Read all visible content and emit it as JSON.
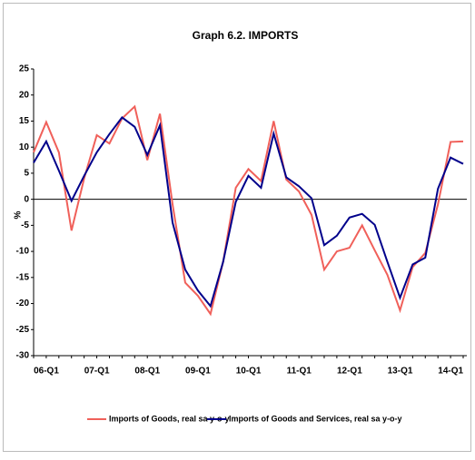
{
  "chart_data": {
    "type": "line",
    "title": "Graph 6.2. IMPORTS",
    "y_label": "%",
    "categories": [
      "06-Q1",
      null,
      null,
      null,
      "07-Q1",
      null,
      null,
      null,
      "08-Q1",
      null,
      null,
      null,
      "09-Q1",
      null,
      null,
      null,
      "10-Q1",
      null,
      null,
      null,
      "11-Q1",
      null,
      null,
      null,
      "12-Q1",
      null,
      null,
      null,
      "13-Q1",
      null,
      null,
      null,
      "14-Q1",
      null,
      null
    ],
    "series": [
      {
        "name": "Imports of Goods, real sa y-o-y",
        "color": "#f0605a",
        "values": [
          9,
          14.8,
          9,
          -6,
          4,
          12.3,
          10.7,
          15.5,
          17.8,
          7.5,
          16.4,
          -1,
          -16,
          -18.5,
          -22,
          -12,
          2.2,
          5.8,
          3.5,
          15,
          3.8,
          1.5,
          -3,
          -13.5,
          -10,
          -9.3,
          -5,
          -9.8,
          -14.5,
          -21.3,
          -13,
          -10.3,
          -1,
          11,
          11.1
        ]
      },
      {
        "name": "Imports of Goods and Services, real sa y-o-y",
        "color": "#00008b",
        "values": [
          7,
          11.1,
          5.5,
          -0.3,
          4.5,
          9,
          12.5,
          15.7,
          13.9,
          8.5,
          14.2,
          -4.5,
          -13.5,
          -17.5,
          -20.5,
          -12,
          -0.5,
          4.5,
          2.2,
          12.6,
          4.2,
          2.5,
          0.2,
          -8.8,
          -7,
          -3.5,
          -2.8,
          -4.9,
          -12,
          -18.9,
          -12.5,
          -11.2,
          2,
          8,
          6.8
        ]
      }
    ],
    "ylim": [
      -30,
      25
    ],
    "yticks": [
      25,
      20,
      15,
      10,
      5,
      0,
      -5,
      -10,
      -15,
      -20,
      -25,
      -30
    ],
    "legend": "bottom"
  }
}
